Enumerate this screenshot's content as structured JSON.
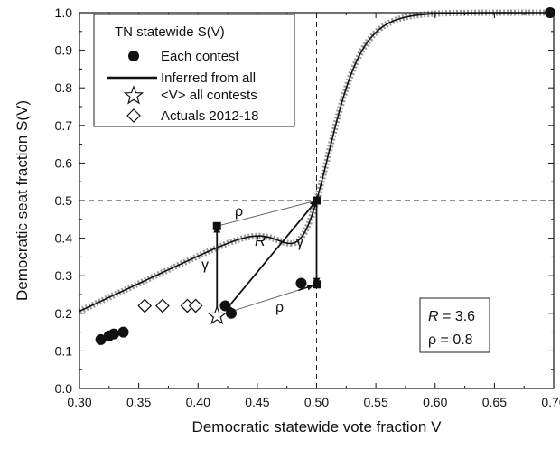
{
  "chart_data": {
    "type": "scatter",
    "xlabel": "Democratic statewide vote fraction V",
    "ylabel": "Democratic seat fraction S(V)",
    "xlim": [
      0.3,
      0.7
    ],
    "ylim": [
      0.0,
      1.0
    ],
    "xticks": [
      "0.30",
      "0.35",
      "0.40",
      "0.45",
      "0.50",
      "0.55",
      "0.60",
      "0.65",
      "0.70"
    ],
    "yticks": [
      "0.0",
      "0.1",
      "0.2",
      "0.3",
      "0.4",
      "0.5",
      "0.6",
      "0.7",
      "0.8",
      "0.9",
      "1.0"
    ],
    "grid": false,
    "legend": {
      "placement": "top-left",
      "title": "TN statewide S(V)",
      "entries": [
        "Each contest",
        "Inferred from all",
        "<V> all contests",
        "Actuals 2012-18"
      ]
    },
    "model": {
      "R": 3.6,
      "rho": 0.8,
      "center": 0.5
    },
    "series": [
      {
        "name": "Each contest",
        "marker": "filled-circle",
        "x": [
          0.318,
          0.325,
          0.329,
          0.337,
          0.423,
          0.428,
          0.487,
          0.697
        ],
        "y": [
          0.13,
          0.14,
          0.145,
          0.15,
          0.22,
          0.2,
          0.28,
          1.0
        ]
      },
      {
        "name": "<V> all contests",
        "marker": "open-star",
        "x": [
          0.416
        ],
        "y": [
          0.193
        ]
      },
      {
        "name": "Actuals 2012-18",
        "marker": "open-diamond",
        "x": [
          0.355,
          0.37,
          0.391,
          0.398
        ],
        "y": [
          0.22,
          0.22,
          0.22,
          0.22
        ]
      }
    ],
    "construction": {
      "squares": [
        [
          0.416,
          0.432
        ],
        [
          0.5,
          0.5
        ],
        [
          0.5,
          0.277
        ]
      ],
      "thin_lines": [
        [
          [
            0.5,
            0.5
          ],
          [
            0.416,
            0.432
          ]
        ],
        [
          [
            0.416,
            0.193
          ],
          [
            0.5,
            0.277
          ]
        ]
      ],
      "arrows": [
        [
          [
            0.416,
            0.193
          ],
          [
            0.416,
            0.432
          ]
        ],
        [
          [
            0.5,
            0.5
          ],
          [
            0.423,
            0.207
          ]
        ],
        [
          [
            0.5,
            0.5
          ],
          [
            0.5,
            0.277
          ]
        ]
      ],
      "dashed_lines": {
        "x": 0.5,
        "y": 0.5
      }
    },
    "annotations": {
      "rho_top": "ρ",
      "rho_bottom": "ρ",
      "gamma_left": "γ",
      "gamma_right": "γ",
      "R_label": "R",
      "box_R_name": "R",
      "box_R_value": " = 3.6",
      "box_rho": "ρ = 0.8"
    }
  }
}
